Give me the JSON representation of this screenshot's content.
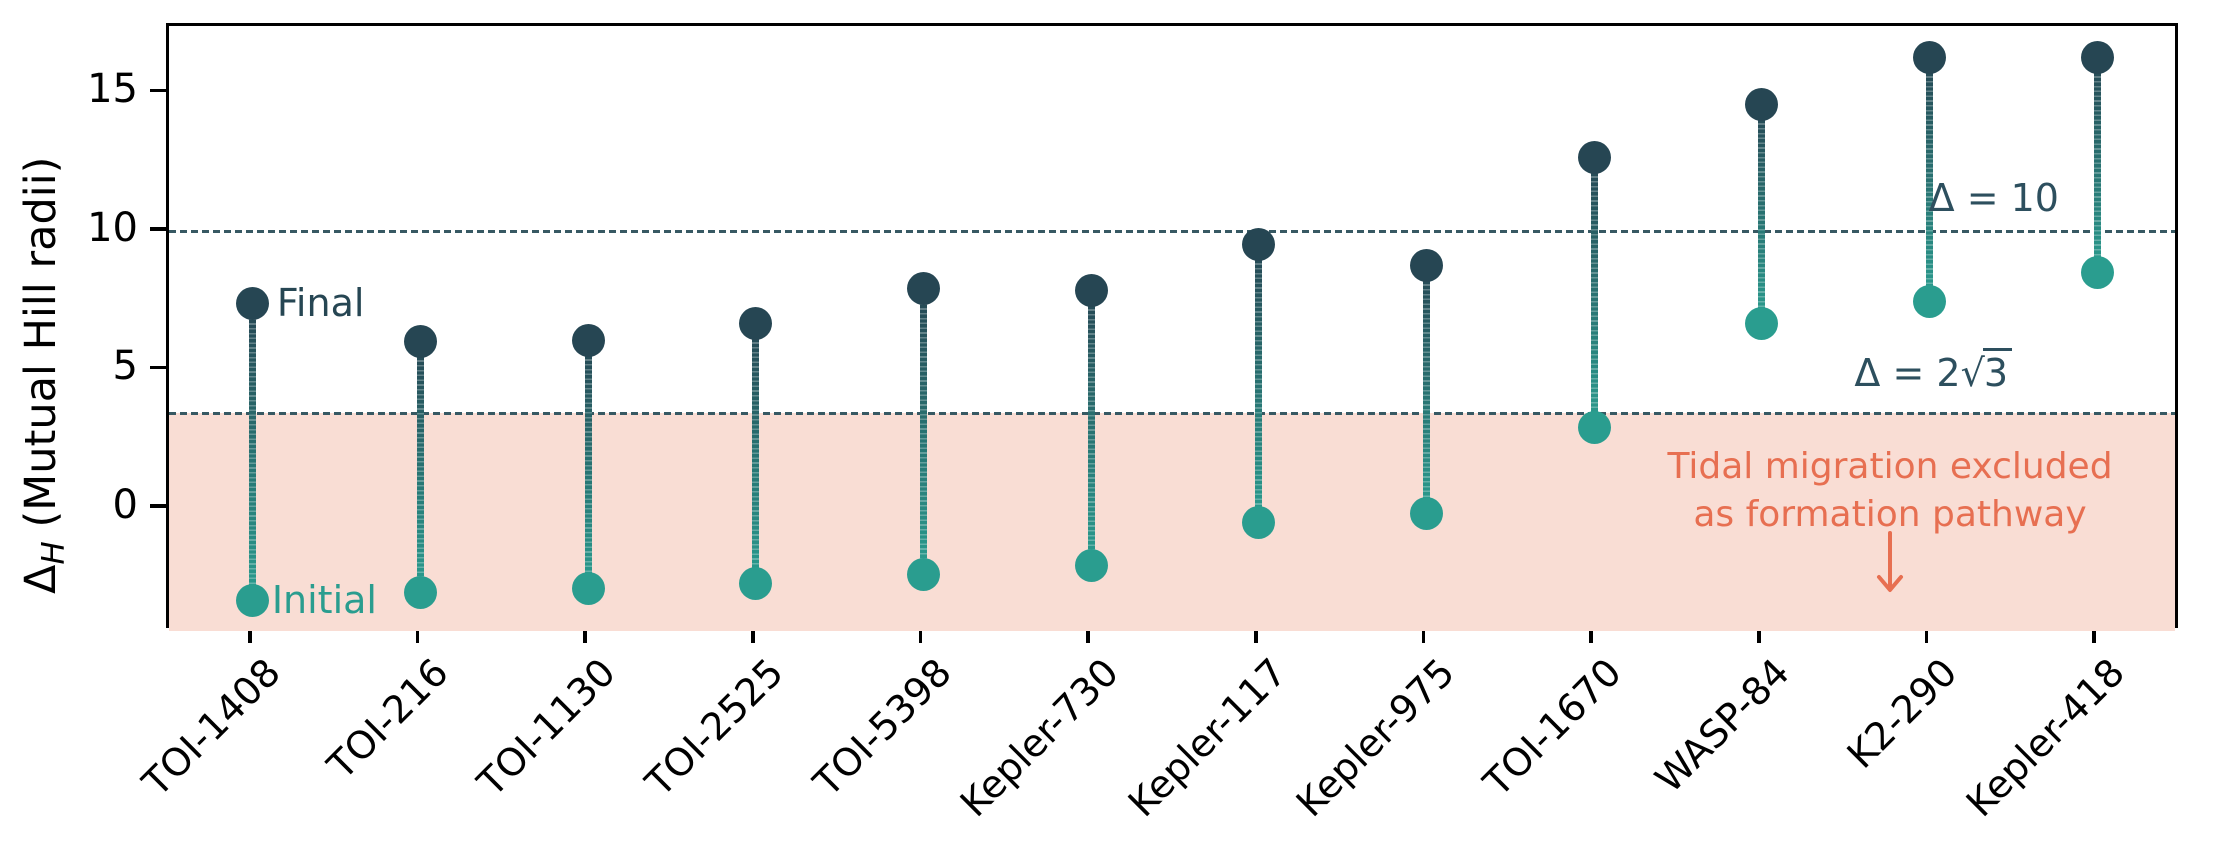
{
  "chart_data": {
    "type": "dumbbell",
    "title": "",
    "categories": [
      "TOI-1408",
      "TOI-216",
      "TOI-1130",
      "TOI-2525",
      "TOI-5398",
      "Kepler-730",
      "Kepler-117",
      "Kepler-975",
      "TOI-1670",
      "WASP-84",
      "K2-290",
      "Kepler-418"
    ],
    "series": [
      {
        "name": "Final",
        "color": "#264653",
        "values": [
          7.4,
          6.05,
          6.1,
          6.7,
          7.95,
          7.9,
          9.55,
          8.8,
          12.7,
          14.6,
          16.3,
          16.3
        ]
      },
      {
        "name": "Initial",
        "color": "#2a9d8f",
        "values": [
          -3.3,
          -3.0,
          -2.85,
          -2.7,
          -2.35,
          -2.05,
          -0.5,
          -0.15,
          2.95,
          6.7,
          7.5,
          8.55
        ]
      }
    ],
    "ylabel": "Δ_H (Mutual Hill radii)",
    "ylabel_parts": {
      "delta": "Δ",
      "sub": "H",
      "rest": " (Mutual Hill radii)"
    },
    "xlabel": "",
    "yticks": [
      0,
      5,
      10,
      15
    ],
    "ylim": [
      -4.4,
      17.43
    ],
    "grid": false,
    "legend_position": "none",
    "reference_lines": [
      {
        "label": "Δ = 10",
        "value": 10,
        "style": "dashed",
        "color": "#375963"
      },
      {
        "label": "Δ = 2√3",
        "label_prefix": "Δ = 2√",
        "label_radicand": "3",
        "value": 3.4641,
        "style": "dashed",
        "color": "#375963"
      }
    ],
    "excluded_region": {
      "below": 3.4641,
      "fill": "#f9ddd4",
      "label_line1": "Tidal migration excluded",
      "label_line2": "as formation pathway",
      "label_color": "#e76f51"
    },
    "point_labels": {
      "final": "Final",
      "initial": "Initial"
    }
  },
  "colors": {
    "final_dot": "#264653",
    "initial_dot": "#2a9d8f",
    "dashed_line": "#375963",
    "ref_label_text": "#2d4f5e",
    "annotation_text": "#e76f51",
    "region_fill": "#f9ddd4",
    "axis": "#000000"
  }
}
